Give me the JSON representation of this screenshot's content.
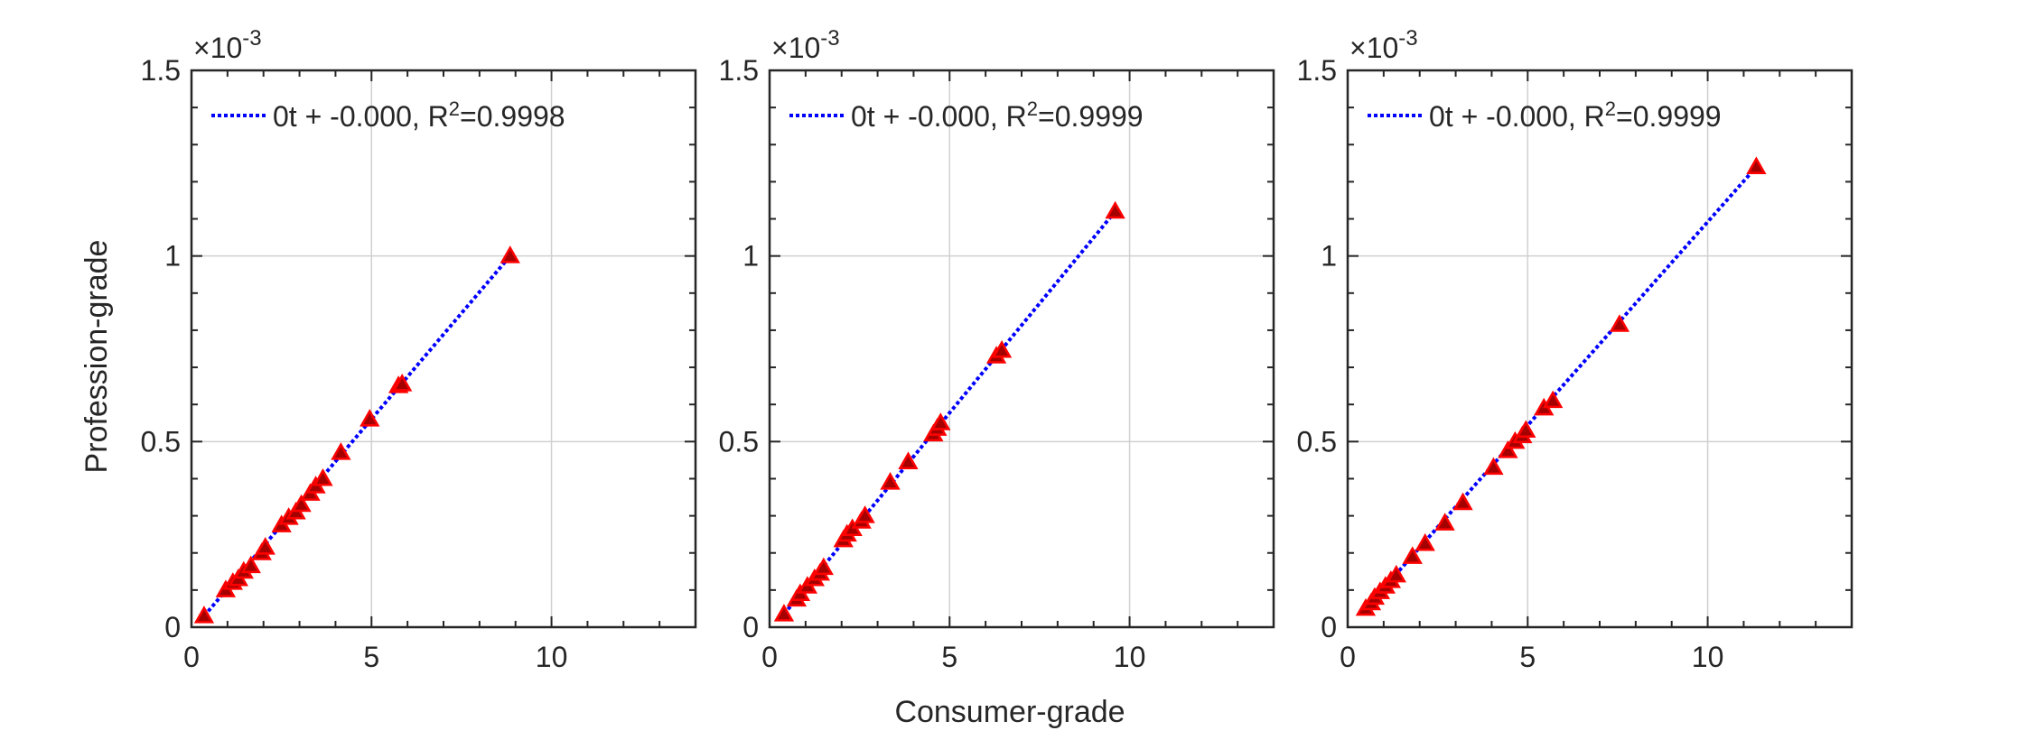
{
  "figure": {
    "xlabel": "Consumer-grade",
    "ylabel": "Profession-grade"
  },
  "colors": {
    "marker_edge": "#ff0000",
    "marker_fill": "#a50000",
    "fit_line": "#0000ff",
    "grid": "#d0d0d0",
    "axis": "#262626"
  },
  "chart_data": [
    {
      "type": "scatter",
      "xlim": [
        0,
        14
      ],
      "ylim": [
        0,
        1.5
      ],
      "xticks": [
        0,
        5,
        10
      ],
      "yticks": [
        0,
        0.5,
        1,
        1.5
      ],
      "ytick_labels": [
        "0",
        "0.5",
        "1",
        "1.5"
      ],
      "xtick_labels": [
        "0",
        "5",
        "10"
      ],
      "y_exponent_base": "×10",
      "y_exponent": "-3",
      "grid": true,
      "legend": {
        "placement": "top-left",
        "text_prefix": "0t + -0.000, R",
        "text_sup": "2",
        "text_suffix": "=0.9998"
      },
      "fit_line": {
        "x": [
          0.35,
          8.85
        ],
        "y": [
          0.03,
          1.0
        ]
      },
      "points": {
        "x": [
          0.35,
          0.95,
          1.15,
          1.3,
          1.45,
          1.65,
          1.95,
          2.05,
          2.5,
          2.7,
          2.9,
          3.05,
          3.3,
          3.45,
          3.65,
          4.15,
          4.95,
          5.75,
          5.85,
          8.85
        ],
        "y": [
          0.03,
          0.1,
          0.12,
          0.13,
          0.15,
          0.165,
          0.2,
          0.215,
          0.275,
          0.295,
          0.31,
          0.33,
          0.36,
          0.38,
          0.4,
          0.47,
          0.56,
          0.65,
          0.655,
          1.0
        ]
      }
    },
    {
      "type": "scatter",
      "xlim": [
        0,
        14
      ],
      "ylim": [
        0,
        1.5
      ],
      "xticks": [
        0,
        5,
        10
      ],
      "yticks": [
        0,
        0.5,
        1,
        1.5
      ],
      "ytick_labels": [
        "0",
        "0.5",
        "1",
        "1.5"
      ],
      "xtick_labels": [
        "0",
        "5",
        "10"
      ],
      "y_exponent_base": "×10",
      "y_exponent": "-3",
      "grid": true,
      "legend": {
        "placement": "top-left",
        "text_prefix": "0t + -0.000, R",
        "text_sup": "2",
        "text_suffix": "=0.9999"
      },
      "fit_line": {
        "x": [
          0.4,
          9.6
        ],
        "y": [
          0.035,
          1.12
        ]
      },
      "points": {
        "x": [
          0.4,
          0.75,
          0.85,
          1.05,
          1.25,
          1.4,
          1.5,
          2.05,
          2.15,
          2.3,
          2.55,
          2.65,
          3.35,
          3.85,
          4.55,
          4.65,
          4.75,
          6.3,
          6.45,
          9.6
        ],
        "y": [
          0.035,
          0.075,
          0.09,
          0.11,
          0.13,
          0.145,
          0.16,
          0.235,
          0.25,
          0.265,
          0.285,
          0.3,
          0.39,
          0.445,
          0.52,
          0.535,
          0.55,
          0.73,
          0.745,
          1.12
        ]
      }
    },
    {
      "type": "scatter",
      "xlim": [
        0,
        14
      ],
      "ylim": [
        0,
        1.5
      ],
      "xticks": [
        0,
        5,
        10
      ],
      "yticks": [
        0,
        0.5,
        1,
        1.5
      ],
      "ytick_labels": [
        "0",
        "0.5",
        "1",
        "1.5"
      ],
      "xtick_labels": [
        "0",
        "5",
        "10"
      ],
      "y_exponent_base": "×10",
      "y_exponent": "-3",
      "grid": true,
      "legend": {
        "placement": "top-left",
        "text_prefix": "0t + -0.000, R",
        "text_sup": "2",
        "text_suffix": "=0.9999"
      },
      "fit_line": {
        "x": [
          0.5,
          11.35
        ],
        "y": [
          0.05,
          1.24
        ]
      },
      "points": {
        "x": [
          0.5,
          0.65,
          0.75,
          0.9,
          1.05,
          1.2,
          1.35,
          1.8,
          2.15,
          2.7,
          3.2,
          4.05,
          4.45,
          4.65,
          4.85,
          4.95,
          5.45,
          5.7,
          7.55,
          11.35
        ],
        "y": [
          0.05,
          0.065,
          0.08,
          0.095,
          0.11,
          0.125,
          0.14,
          0.19,
          0.225,
          0.28,
          0.335,
          0.43,
          0.475,
          0.5,
          0.515,
          0.53,
          0.59,
          0.61,
          0.815,
          1.24
        ]
      }
    }
  ]
}
